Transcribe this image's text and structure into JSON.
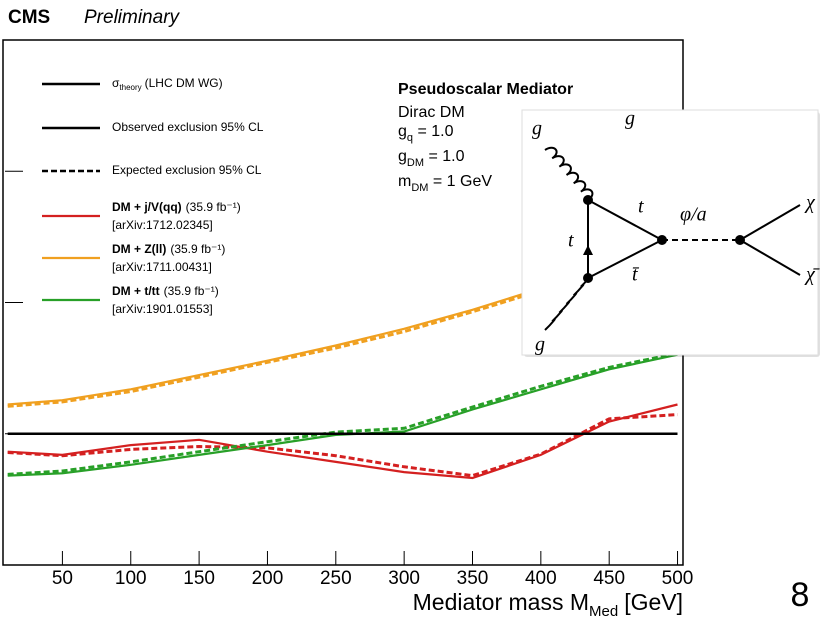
{
  "chart_data": {
    "type": "line",
    "header": {
      "experiment": "CMS",
      "status": "Preliminary"
    },
    "xlabel": {
      "text": "Mediator mass M",
      "sub": "Med",
      "unit": "[GeV]"
    },
    "x": [
      10,
      50,
      100,
      150,
      200,
      250,
      300,
      350,
      400,
      450,
      500
    ],
    "xlim": [
      8,
      504
    ],
    "xticks": [
      50,
      100,
      150,
      200,
      250,
      300,
      350,
      400,
      450,
      500
    ],
    "ylim": [
      0.1,
      1000
    ],
    "log_y": true,
    "yticks": [
      0.1,
      1,
      10,
      100,
      1000
    ],
    "theory": {
      "symbol": "σ",
      "sub": "theory",
      "note": "(LHC DM WG)",
      "color": "#000000",
      "values": [
        1,
        1,
        1,
        1,
        1,
        1,
        1,
        1,
        1,
        1,
        1
      ]
    },
    "style_legend": [
      {
        "label": "Observed exclusion 95% CL",
        "dashed": false
      },
      {
        "label": "Expected exclusion 95% CL",
        "dashed": true
      }
    ],
    "series": [
      {
        "name": "DM + j/V(qq)",
        "lumi": "(35.9 fb⁻¹)",
        "ref": "[arXiv:1712.02345]",
        "color": "#d42020",
        "values": [
          0.73,
          0.69,
          0.82,
          0.9,
          0.73,
          0.61,
          0.51,
          0.46,
          0.69,
          1.24,
          1.67
        ],
        "expected": [
          0.72,
          0.68,
          0.76,
          0.8,
          0.78,
          0.68,
          0.56,
          0.48,
          0.7,
          1.3,
          1.4
        ]
      },
      {
        "name": "DM + Z(ll)",
        "lumi": "(35.9 fb⁻¹)",
        "ref": "[arXiv:1711.00431]",
        "color": "#f0a020",
        "values": [
          1.67,
          1.8,
          2.18,
          2.8,
          3.6,
          4.7,
          6.3,
          8.8,
          12.8,
          17,
          20
        ],
        "expected": [
          1.62,
          1.75,
          2.1,
          2.7,
          3.5,
          4.5,
          6.0,
          8.5,
          12.3,
          16.5,
          19.5
        ]
      },
      {
        "name": "DM + t/tt",
        "lumi": "(35.9 fb⁻¹)",
        "ref": "[arXiv:1901.01553]",
        "color": "#28a028",
        "values": [
          0.48,
          0.5,
          0.58,
          0.69,
          0.82,
          0.98,
          1.04,
          1.53,
          2.18,
          3.1,
          4.0
        ],
        "expected": [
          0.49,
          0.52,
          0.61,
          0.73,
          0.87,
          1.03,
          1.1,
          1.6,
          2.3,
          3.2,
          4.1
        ]
      }
    ],
    "annotation": {
      "title": "Pseudoscalar Mediator",
      "model": "Dirac DM",
      "params": [
        {
          "symbol": "g",
          "sub": "q",
          "rest": " = 1.0"
        },
        {
          "symbol": "g",
          "sub": "DM",
          "rest": " = 1.0"
        },
        {
          "symbol": "m",
          "sub": "DM",
          "rest": " = 1 GeV"
        }
      ]
    }
  },
  "diagram": {
    "labels": [
      "g",
      "g",
      "t",
      "t",
      "t̄",
      "φ/a",
      "χ",
      "χ̄",
      "g"
    ]
  },
  "page_number": "8"
}
